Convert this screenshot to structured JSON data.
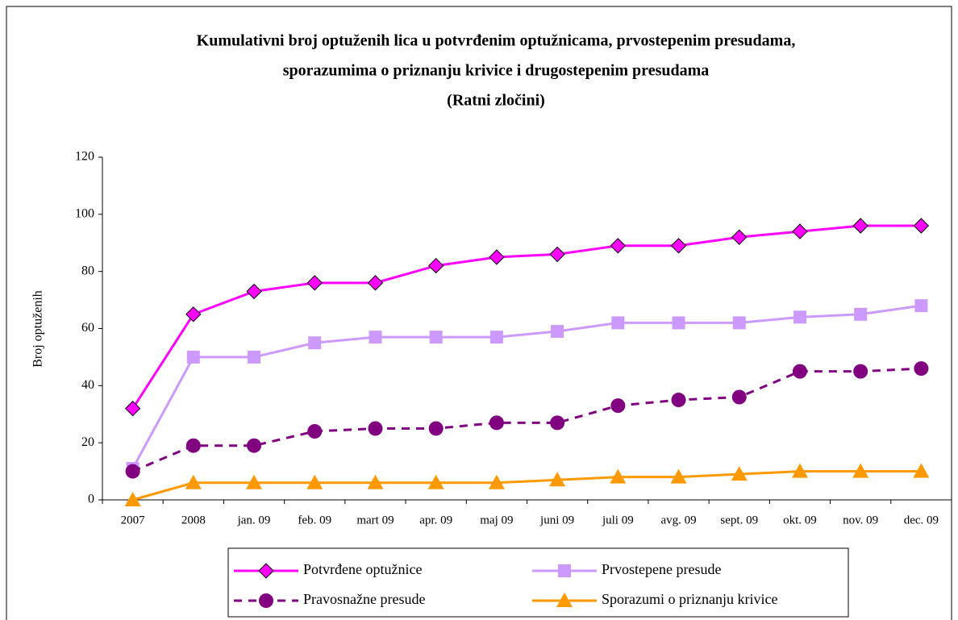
{
  "chart_data": {
    "type": "line",
    "title": [
      "Kumulativni broj optuženih lica u potvrđenim optužnicama, prvostepenim presudama,",
      "sporazumima o priznanju krivice i drugostepenim presudama",
      "(Ratni zločini)"
    ],
    "y_label": "Broj optuženih",
    "categories": [
      "2007",
      "2008",
      "jan. 09",
      "feb. 09",
      "mart 09",
      "apr. 09",
      "maj 09",
      "juni 09",
      "juli 09",
      "avg. 09",
      "sept. 09",
      "okt. 09",
      "nov. 09",
      "dec. 09"
    ],
    "series": [
      {
        "name": "Potvrđene optužnice",
        "color": "#ff00ff",
        "marker": "diamond",
        "dashed": false,
        "values": [
          32,
          65,
          73,
          76,
          76,
          82,
          85,
          86,
          89,
          89,
          92,
          94,
          96,
          96
        ]
      },
      {
        "name": "Prvostepene presude",
        "color": "#cc99ff",
        "marker": "square",
        "dashed": false,
        "values": [
          11,
          50,
          50,
          55,
          57,
          57,
          57,
          59,
          62,
          62,
          62,
          64,
          65,
          68
        ]
      },
      {
        "name": "Pravosnažne presude",
        "color": "#800080",
        "marker": "circle",
        "dashed": true,
        "values": [
          10,
          19,
          19,
          24,
          25,
          25,
          27,
          27,
          33,
          35,
          36,
          45,
          45,
          46
        ]
      },
      {
        "name": "Sporazumi o priznanju krivice",
        "color": "#ff9900",
        "marker": "triangle",
        "dashed": false,
        "values": [
          0,
          6,
          6,
          6,
          6,
          6,
          6,
          7,
          8,
          8,
          9,
          10,
          10,
          10
        ]
      }
    ],
    "ylim": [
      0,
      120
    ],
    "yticks": [
      0,
      20,
      40,
      60,
      80,
      100,
      120
    ],
    "grid": false,
    "legend": "bottom"
  }
}
